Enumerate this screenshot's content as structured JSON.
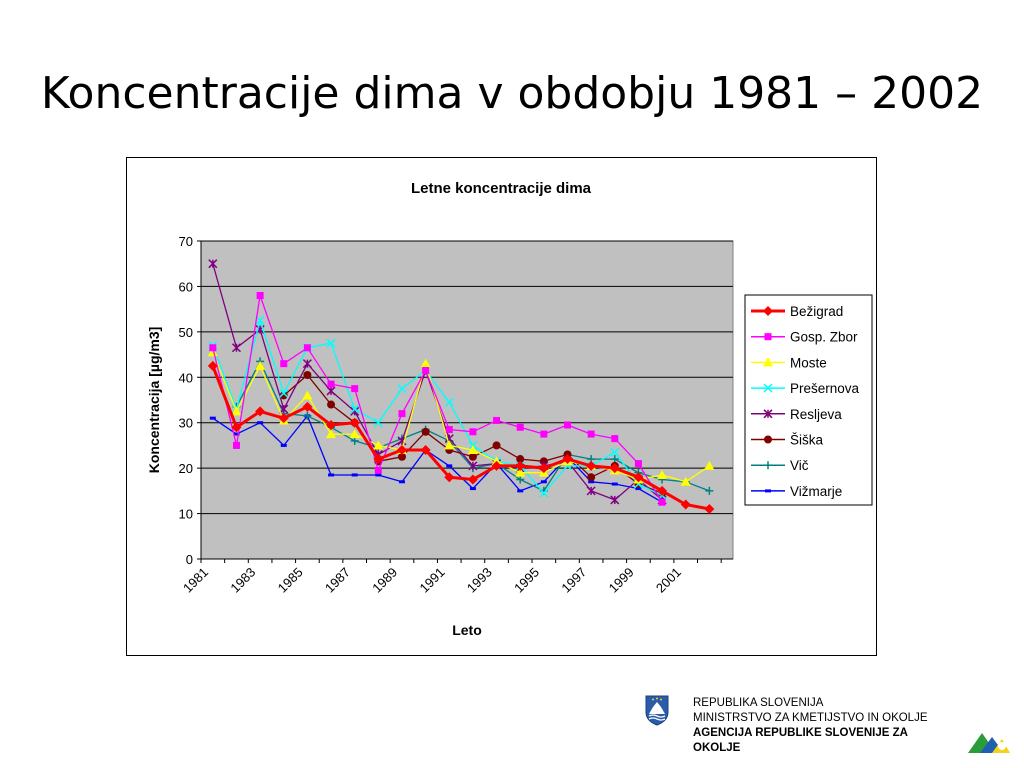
{
  "slide": {
    "title": "Koncentracije dima v obdobju 1981 – 2002"
  },
  "footer": {
    "line1": "REPUBLIKA SLOVENIJA",
    "line2": "MINISTRSTVO ZA KMETIJSTVO IN OKOLJE",
    "line3": "AGENCIJA REPUBLIKE SLOVENIJE ZA",
    "line4": "OKOLJE"
  },
  "chart_data": {
    "type": "line",
    "title": "Letne koncentracije dima",
    "xlabel": "Leto",
    "ylabel": "Koncentracija [µg/m3]",
    "ylim": [
      0,
      70
    ],
    "yticks": [
      0,
      10,
      20,
      30,
      40,
      50,
      60,
      70
    ],
    "x": [
      1981,
      1982,
      1983,
      1984,
      1985,
      1986,
      1987,
      1988,
      1989,
      1990,
      1991,
      1992,
      1993,
      1994,
      1995,
      1996,
      1997,
      1998,
      1999,
      2000,
      2001,
      2002
    ],
    "xtick_labels": [
      "1981",
      "1983",
      "1985",
      "1987",
      "1989",
      "1991",
      "1993",
      "1995",
      "1997",
      "1999",
      "2001"
    ],
    "plot_background": "#c0c0c0",
    "grid": true,
    "legend_position": "right",
    "series": [
      {
        "name": "Bežigrad",
        "color": "#ff0000",
        "marker": "diamond",
        "values": [
          42.5,
          29,
          32.5,
          31,
          33.5,
          29.5,
          30,
          22,
          24,
          24,
          18,
          17.5,
          20.5,
          20.5,
          20,
          22,
          20.5,
          20,
          18,
          15,
          12,
          11
        ]
      },
      {
        "name": "Gosp. Zbor",
        "color": "#ff00ff",
        "marker": "square",
        "values": [
          46.5,
          25,
          58,
          43,
          46.5,
          38.5,
          37.5,
          19.5,
          32,
          41.5,
          28.5,
          28,
          30.5,
          29,
          27.5,
          29.5,
          27.5,
          26.5,
          21,
          12.5,
          null,
          null
        ]
      },
      {
        "name": "Moste",
        "color": "#ffff00",
        "marker": "triangle",
        "values": [
          45.5,
          32.5,
          42.5,
          30.5,
          36,
          27.5,
          27.5,
          25,
          24,
          43,
          25,
          24,
          21.5,
          19,
          19,
          21.5,
          20.5,
          19.5,
          17.5,
          18.5,
          17,
          20.5
        ]
      },
      {
        "name": "Prešernova",
        "color": "#00ffff",
        "marker": "x",
        "values": [
          47,
          33,
          52.5,
          36.5,
          46.5,
          47.5,
          33,
          30,
          37.5,
          41.5,
          34.5,
          25,
          21.5,
          20.5,
          14.5,
          20.5,
          20.5,
          23.5,
          16.5,
          14,
          null,
          null
        ]
      },
      {
        "name": "Resljeva",
        "color": "#800080",
        "marker": "star",
        "values": [
          65,
          46.5,
          50.5,
          33,
          43,
          37,
          32.5,
          23,
          26,
          41.5,
          26.5,
          20.5,
          21,
          20,
          20.5,
          21.5,
          15,
          13,
          17.5,
          13,
          null,
          null
        ]
      },
      {
        "name": "Šiška",
        "color": "#800000",
        "marker": "circle",
        "values": [
          null,
          null,
          null,
          36,
          40.5,
          34,
          30,
          21.5,
          22.5,
          28,
          24,
          22.5,
          25,
          22,
          21.5,
          23,
          18,
          20.5,
          16.5,
          14.5,
          null,
          null
        ]
      },
      {
        "name": "Vič",
        "color": "#008080",
        "marker": "plus",
        "values": [
          null,
          33.5,
          43.5,
          32,
          31.5,
          29,
          26,
          24.5,
          26.5,
          28.5,
          26,
          20,
          21,
          17.5,
          15,
          23,
          22,
          22,
          19,
          17.5,
          17,
          15
        ]
      },
      {
        "name": "Vižmarje",
        "color": "#0000ff",
        "marker": "dash",
        "values": [
          31,
          27.5,
          30,
          25,
          31.5,
          18.5,
          18.5,
          18.5,
          17,
          24,
          20.5,
          15.5,
          21,
          15,
          17,
          22.5,
          17,
          16.5,
          15.5,
          12.5,
          null,
          null
        ]
      }
    ]
  }
}
